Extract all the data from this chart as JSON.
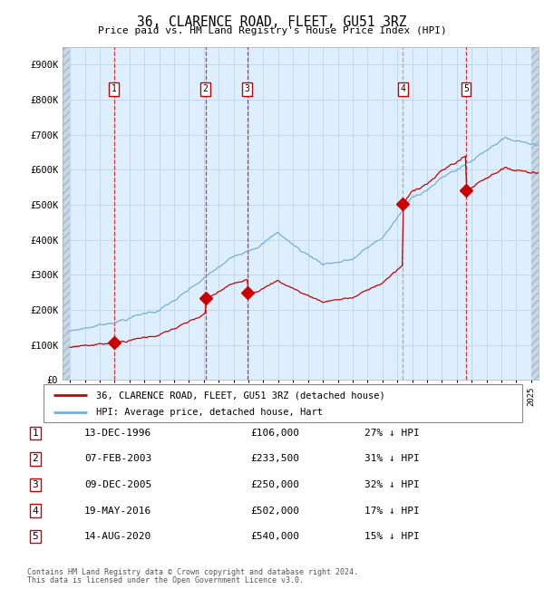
{
  "title": "36, CLARENCE ROAD, FLEET, GU51 3RZ",
  "subtitle": "Price paid vs. HM Land Registry's House Price Index (HPI)",
  "legend_line1": "36, CLARENCE ROAD, FLEET, GU51 3RZ (detached house)",
  "legend_line2": "HPI: Average price, detached house, Hart",
  "footer1": "Contains HM Land Registry data © Crown copyright and database right 2024.",
  "footer2": "This data is licensed under the Open Government Licence v3.0.",
  "transactions": [
    {
      "num": 1,
      "date": "13-DEC-1996",
      "price": 106000,
      "pct": "27% ↓ HPI",
      "x_year": 1996.95
    },
    {
      "num": 2,
      "date": "07-FEB-2003",
      "price": 233500,
      "pct": "31% ↓ HPI",
      "x_year": 2003.1
    },
    {
      "num": 3,
      "date": "09-DEC-2005",
      "price": 250000,
      "pct": "32% ↓ HPI",
      "x_year": 2005.92
    },
    {
      "num": 4,
      "date": "19-MAY-2016",
      "price": 502000,
      "pct": "17% ↓ HPI",
      "x_year": 2016.38
    },
    {
      "num": 5,
      "date": "14-AUG-2020",
      "price": 540000,
      "pct": "15% ↓ HPI",
      "x_year": 2020.62
    }
  ],
  "hpi_color": "#7aaed6",
  "price_color": "#cc0000",
  "transaction_color": "#cc0000",
  "dashed_line_color": "#dd3333",
  "grid_color": "#b8cfe8",
  "bg_color": "#ddeeff",
  "ylim": [
    0,
    950000
  ],
  "xlim_start": 1993.5,
  "xlim_end": 2025.5,
  "yticks": [
    0,
    100000,
    200000,
    300000,
    400000,
    500000,
    600000,
    700000,
    800000,
    900000
  ],
  "ytick_labels": [
    "£0",
    "£100K",
    "£200K",
    "£300K",
    "£400K",
    "£500K",
    "£600K",
    "£700K",
    "£800K",
    "£900K"
  ]
}
